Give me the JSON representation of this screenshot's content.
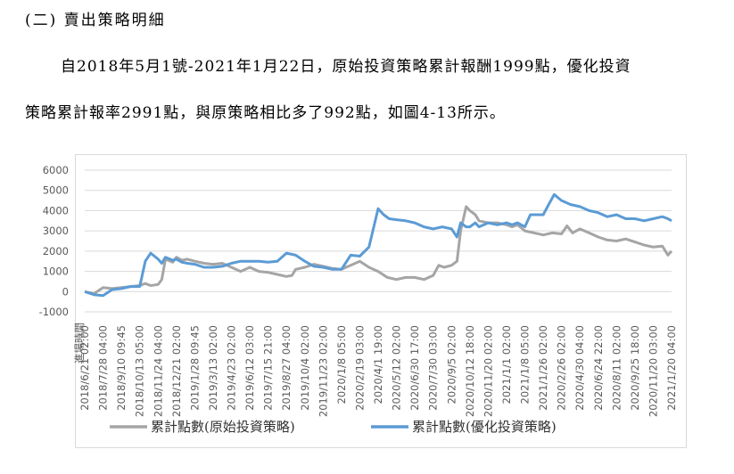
{
  "document": {
    "heading": "(二) 賣出策略明細",
    "paragraph_line1": "自2018年5月1號-2021年1月22日，原始投資策略累計報酬1999點，優化投資",
    "paragraph_line2": "策略累計報率2991點，與原策略相比多了992點，如圖4-13所示。"
  },
  "chart_data": {
    "type": "line",
    "title": "",
    "xlabel": "進場時間",
    "ylabel": "",
    "ylim": [
      -1000,
      6000
    ],
    "yticks": [
      "6000",
      "5000",
      "4000",
      "3000",
      "2000",
      "1000",
      "0",
      "-1000"
    ],
    "ytick_values": [
      6000,
      5000,
      4000,
      3000,
      2000,
      1000,
      0,
      -1000
    ],
    "grid": "horizontal",
    "legend": "bottom",
    "x_tick_labels": [
      "2018/6/21 02:00",
      "2018/7/28 04:00",
      "2018/9/10 09:45",
      "2018/10/13 05:00",
      "2018/11/24 04:00",
      "2018/12/21 02:00",
      "2019/1/28 09:45",
      "2019/3/13 02:00",
      "2019/4/23 02:00",
      "2019/6/12 03:00",
      "2019/7/15 21:00",
      "2019/8/27 04:00",
      "2019/10/4 02:00",
      "2019/11/23 02:00",
      "2020/1/8 05:00",
      "2020/2/19 03:00",
      "2020/4/1 19:00",
      "2020/5/12 02:00",
      "2020/6/30 17:00",
      "2020/7/30 03:00",
      "2020/9/5 02:00",
      "2020/10/12 18:00",
      "2020/11/20 02:00",
      "2021/1/1 02:00",
      "2021/1/8 05:00",
      "2021/1/26 02:00",
      "2020/2/26 02:00",
      "2020/4/30 04:00",
      "2020/6/24 22:00",
      "2020/8/11 02:00",
      "2020/9/25 18:00",
      "2020/11/20 03:00",
      "2021/1/20 04:00"
    ],
    "x": [
      0,
      1,
      2,
      3,
      4,
      5,
      6,
      7,
      8,
      9,
      10,
      11,
      12,
      13,
      14,
      15,
      16,
      17,
      18,
      19,
      20,
      21,
      22,
      23,
      24,
      25,
      26,
      27,
      28,
      29,
      30,
      31,
      32
    ],
    "series": [
      {
        "name": "累計點數(原始投資策略)",
        "color": "#a5a5a5",
        "points": [
          [
            0,
            0
          ],
          [
            0.5,
            -100
          ],
          [
            1,
            200
          ],
          [
            1.5,
            150
          ],
          [
            2,
            200
          ],
          [
            2.5,
            250
          ],
          [
            3,
            300
          ],
          [
            3.3,
            400
          ],
          [
            3.6,
            300
          ],
          [
            4,
            350
          ],
          [
            4.2,
            600
          ],
          [
            4.4,
            1600
          ],
          [
            4.8,
            1450
          ],
          [
            5,
            1700
          ],
          [
            5.3,
            1550
          ],
          [
            5.6,
            1600
          ],
          [
            6,
            1500
          ],
          [
            6.5,
            1400
          ],
          [
            7,
            1350
          ],
          [
            7.5,
            1400
          ],
          [
            8,
            1200
          ],
          [
            8.5,
            1000
          ],
          [
            9,
            1200
          ],
          [
            9.5,
            1000
          ],
          [
            10,
            950
          ],
          [
            10.5,
            850
          ],
          [
            11,
            750
          ],
          [
            11.3,
            800
          ],
          [
            11.5,
            1100
          ],
          [
            12,
            1200
          ],
          [
            12.5,
            1350
          ],
          [
            13,
            1250
          ],
          [
            13.5,
            1150
          ],
          [
            14,
            1100
          ],
          [
            14.5,
            1300
          ],
          [
            15,
            1500
          ],
          [
            15.5,
            1200
          ],
          [
            16,
            1000
          ],
          [
            16.5,
            700
          ],
          [
            17,
            600
          ],
          [
            17.5,
            700
          ],
          [
            18,
            700
          ],
          [
            18.5,
            600
          ],
          [
            19,
            800
          ],
          [
            19.3,
            1300
          ],
          [
            19.6,
            1200
          ],
          [
            20,
            1300
          ],
          [
            20.3,
            1500
          ],
          [
            20.5,
            3000
          ],
          [
            20.8,
            4200
          ],
          [
            21,
            4000
          ],
          [
            21.3,
            3800
          ],
          [
            21.5,
            3500
          ],
          [
            22,
            3400
          ],
          [
            22.5,
            3400
          ],
          [
            23,
            3300
          ],
          [
            23.3,
            3200
          ],
          [
            23.6,
            3300
          ],
          [
            24,
            3000
          ],
          [
            24.5,
            2900
          ],
          [
            25,
            2800
          ],
          [
            25.5,
            2900
          ],
          [
            26,
            2850
          ],
          [
            26.3,
            3250
          ],
          [
            26.6,
            2900
          ],
          [
            27,
            3100
          ],
          [
            27.5,
            2900
          ],
          [
            28,
            2700
          ],
          [
            28.5,
            2550
          ],
          [
            29,
            2500
          ],
          [
            29.5,
            2600
          ],
          [
            30,
            2450
          ],
          [
            30.5,
            2300
          ],
          [
            31,
            2200
          ],
          [
            31.5,
            2250
          ],
          [
            31.8,
            1800
          ],
          [
            32,
            2000
          ]
        ]
      },
      {
        "name": "累計點數(優化投資策略)",
        "color": "#5b9bd5",
        "points": [
          [
            0,
            0
          ],
          [
            0.5,
            -150
          ],
          [
            1,
            -200
          ],
          [
            1.5,
            100
          ],
          [
            2,
            150
          ],
          [
            2.5,
            250
          ],
          [
            3,
            250
          ],
          [
            3.3,
            1500
          ],
          [
            3.6,
            1900
          ],
          [
            4,
            1600
          ],
          [
            4.2,
            1400
          ],
          [
            4.4,
            1700
          ],
          [
            4.8,
            1550
          ],
          [
            5,
            1600
          ],
          [
            5.3,
            1450
          ],
          [
            5.6,
            1400
          ],
          [
            6,
            1350
          ],
          [
            6.5,
            1200
          ],
          [
            7,
            1200
          ],
          [
            7.5,
            1250
          ],
          [
            8,
            1400
          ],
          [
            8.5,
            1500
          ],
          [
            9,
            1500
          ],
          [
            9.5,
            1500
          ],
          [
            10,
            1450
          ],
          [
            10.5,
            1500
          ],
          [
            11,
            1900
          ],
          [
            11.5,
            1800
          ],
          [
            12,
            1500
          ],
          [
            12.5,
            1250
          ],
          [
            13,
            1200
          ],
          [
            13.5,
            1100
          ],
          [
            14,
            1100
          ],
          [
            14.5,
            1800
          ],
          [
            15,
            1750
          ],
          [
            15.5,
            2200
          ],
          [
            16,
            4100
          ],
          [
            16.3,
            3800
          ],
          [
            16.6,
            3600
          ],
          [
            17,
            3550
          ],
          [
            17.5,
            3500
          ],
          [
            18,
            3400
          ],
          [
            18.5,
            3200
          ],
          [
            19,
            3100
          ],
          [
            19.5,
            3200
          ],
          [
            20,
            3100
          ],
          [
            20.3,
            2700
          ],
          [
            20.5,
            3400
          ],
          [
            20.8,
            3200
          ],
          [
            21,
            3200
          ],
          [
            21.3,
            3400
          ],
          [
            21.5,
            3200
          ],
          [
            22,
            3400
          ],
          [
            22.5,
            3300
          ],
          [
            23,
            3400
          ],
          [
            23.3,
            3300
          ],
          [
            23.6,
            3400
          ],
          [
            24,
            3200
          ],
          [
            24.3,
            3800
          ],
          [
            24.6,
            3800
          ],
          [
            25,
            3800
          ],
          [
            25.3,
            4300
          ],
          [
            25.6,
            4800
          ],
          [
            26,
            4500
          ],
          [
            26.5,
            4300
          ],
          [
            27,
            4200
          ],
          [
            27.5,
            4000
          ],
          [
            28,
            3900
          ],
          [
            28.5,
            3700
          ],
          [
            29,
            3800
          ],
          [
            29.5,
            3600
          ],
          [
            30,
            3600
          ],
          [
            30.5,
            3500
          ],
          [
            31,
            3600
          ],
          [
            31.5,
            3700
          ],
          [
            31.8,
            3600
          ],
          [
            32,
            3500
          ]
        ]
      }
    ]
  }
}
